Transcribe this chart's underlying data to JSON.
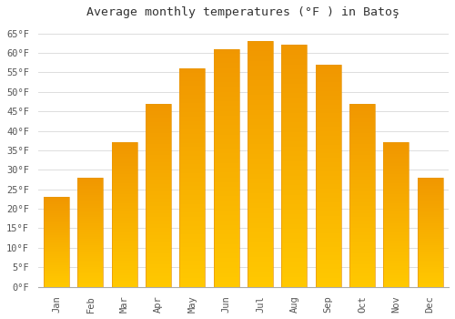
{
  "title": "Average monthly temperatures (°F ) in Batoş",
  "months": [
    "Jan",
    "Feb",
    "Mar",
    "Apr",
    "May",
    "Jun",
    "Jul",
    "Aug",
    "Sep",
    "Oct",
    "Nov",
    "Dec"
  ],
  "values": [
    23,
    28,
    37,
    47,
    56,
    61,
    63,
    62,
    57,
    47,
    37,
    28
  ],
  "bar_color_bottom": "#FFC200",
  "bar_color_top": "#F5A800",
  "bar_edge_color": "#E8960A",
  "ylim": [
    0,
    67
  ],
  "yticks": [
    0,
    5,
    10,
    15,
    20,
    25,
    30,
    35,
    40,
    45,
    50,
    55,
    60,
    65
  ],
  "background_color": "#ffffff",
  "grid_color": "#dddddd",
  "title_fontsize": 9.5,
  "tick_fontsize": 7.5
}
